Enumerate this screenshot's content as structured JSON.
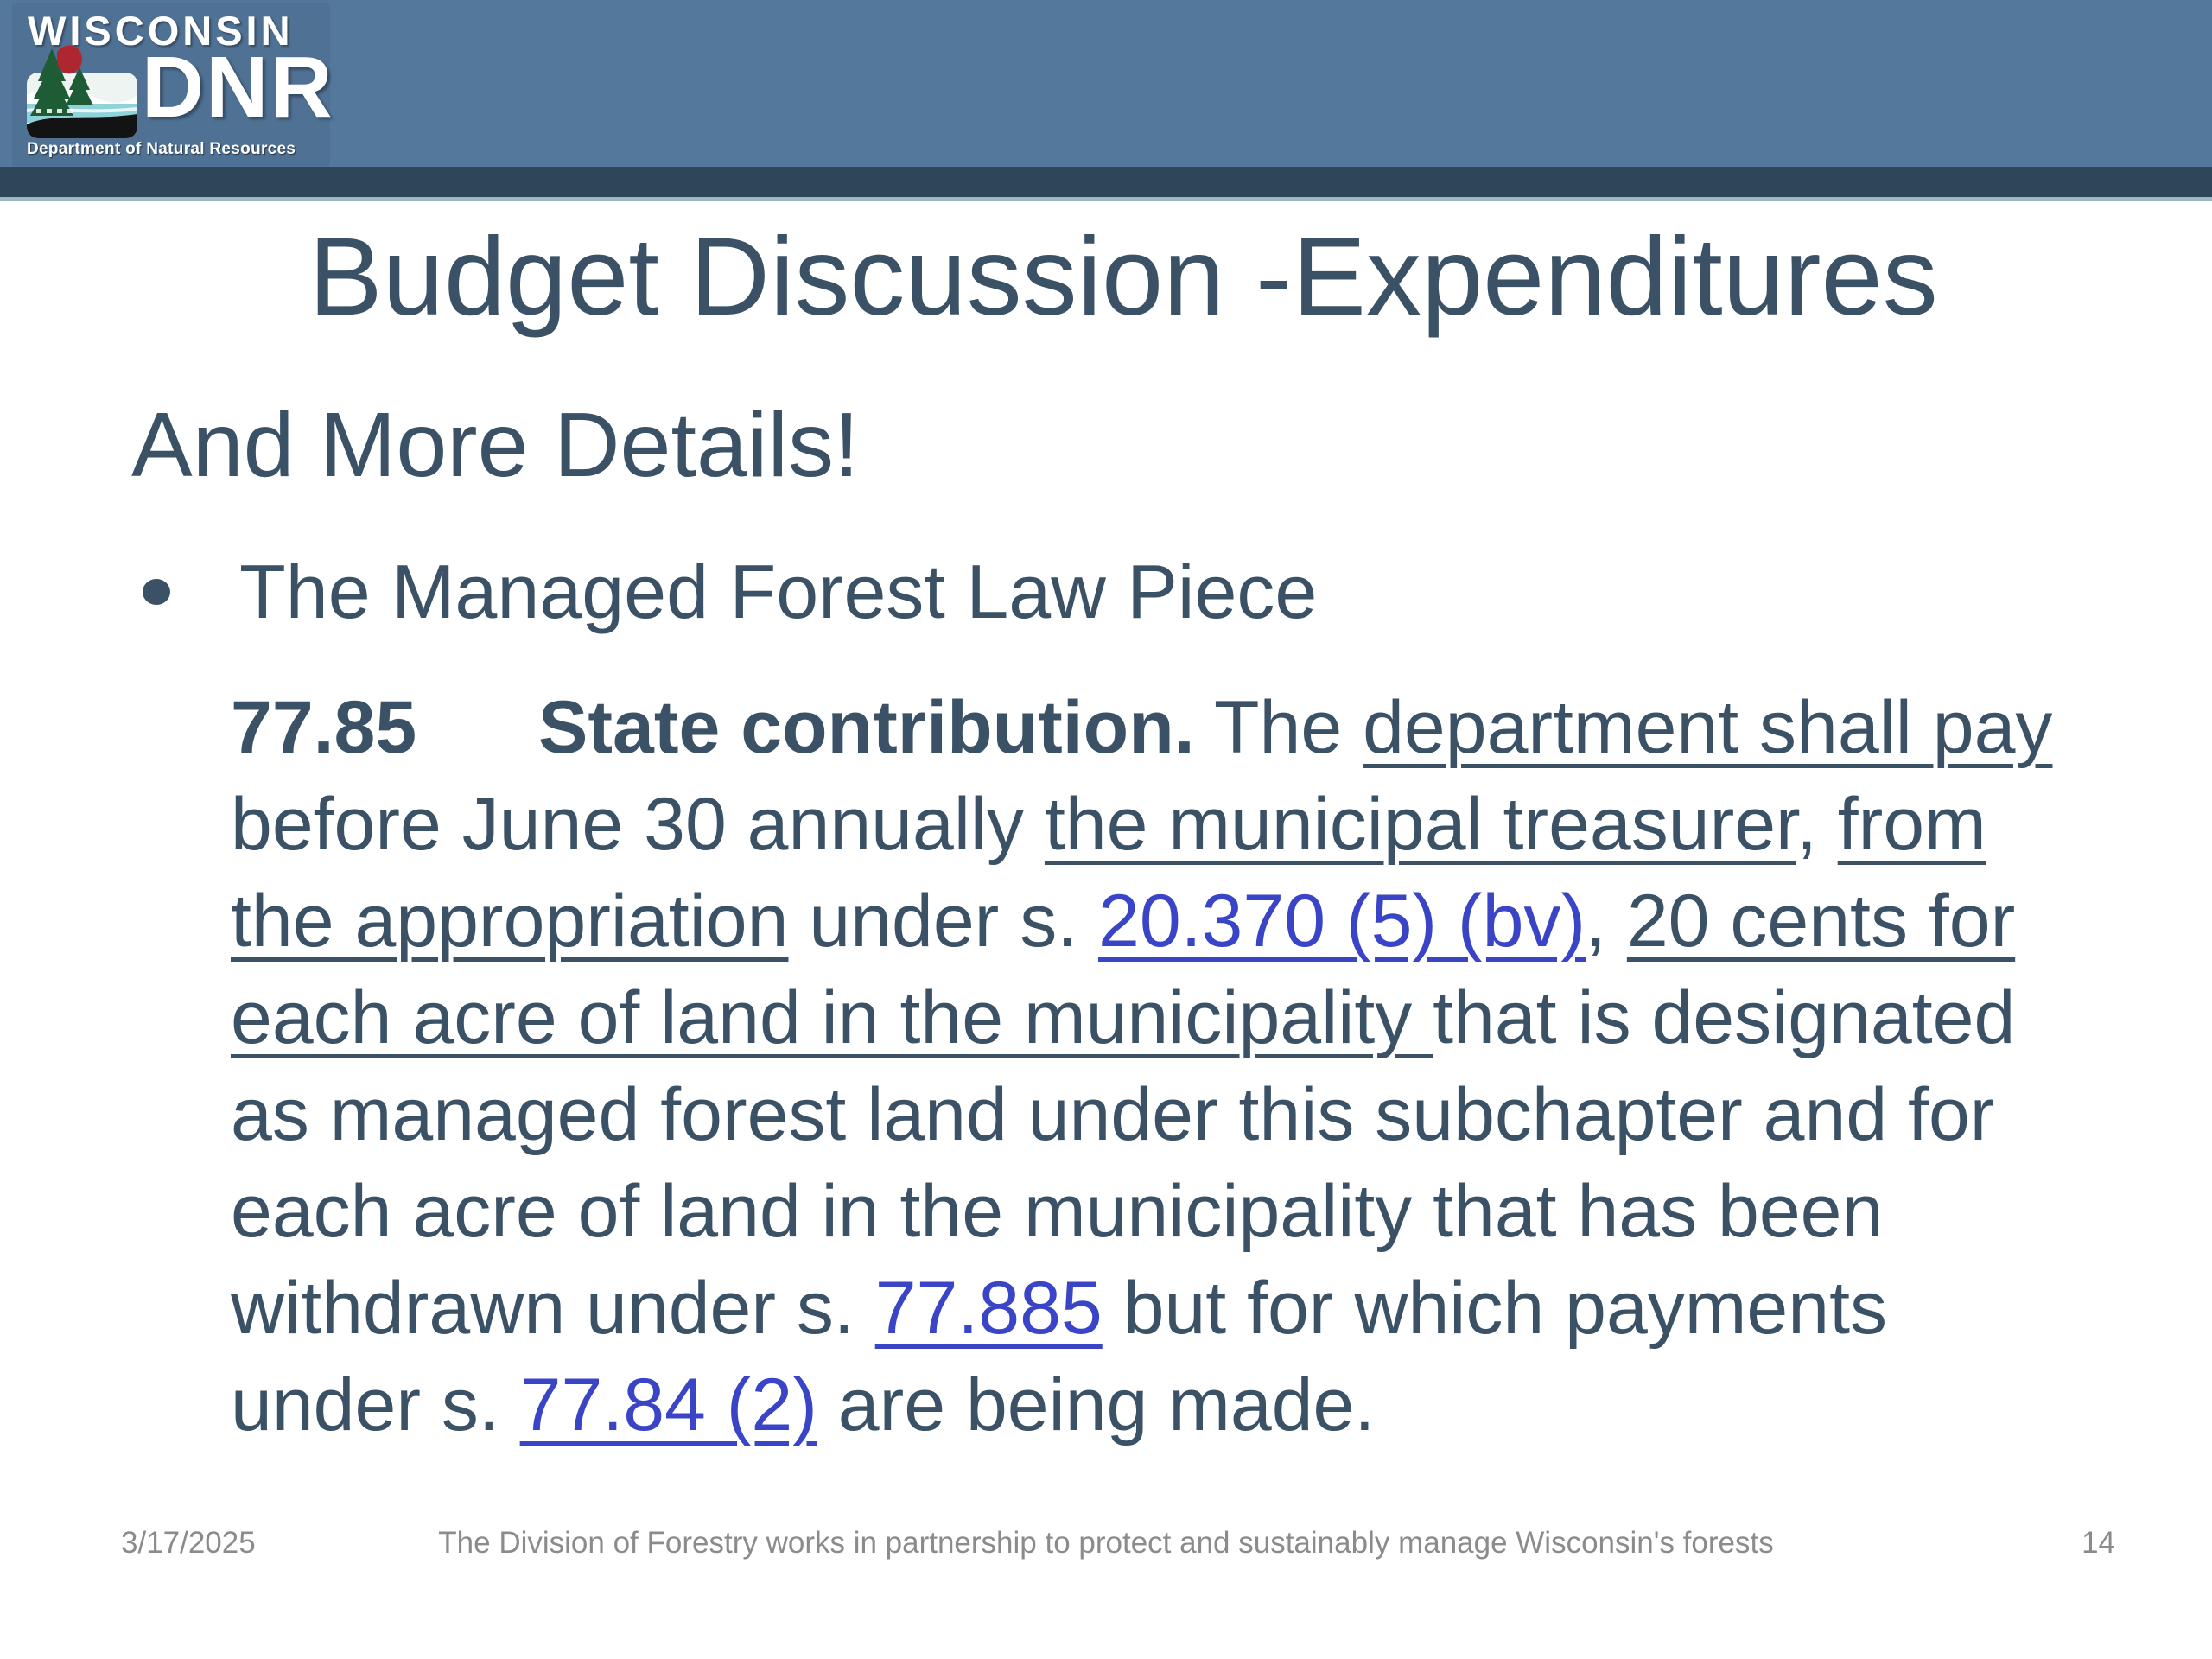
{
  "header": {
    "logo": {
      "title": "WISCONSIN",
      "acronym": "DNR",
      "tagline": "Department of Natural Resources",
      "icon": "dnr-landscape-icon"
    }
  },
  "slide": {
    "title": "Budget Discussion -Expenditures",
    "heading": "And More Details!",
    "bullet_text": "The Managed Forest Law Piece",
    "statute_lines": [
      [
        {
          "text": "77.85",
          "bold": true,
          "tabstop": true
        },
        {
          "text": "State contribution.",
          "bold": true
        },
        {
          "text": " The "
        },
        {
          "text": "department shall pay",
          "underline": true
        }
      ],
      [
        {
          "text": "before June 30 annually "
        },
        {
          "text": "the municipal treasurer",
          "underline": true
        },
        {
          "text": ", "
        },
        {
          "text": "from",
          "underline": true
        }
      ],
      [
        {
          "text": "the appropriation",
          "underline": true
        },
        {
          "text": " under s. "
        },
        {
          "text": "20.370 (5) (bv)",
          "link": true
        },
        {
          "text": ", "
        },
        {
          "text": "20 cents for",
          "underline": true
        }
      ],
      [
        {
          "text": "each acre of land in the municipality ",
          "underline": true
        },
        {
          "text": "that is designated"
        }
      ],
      [
        {
          "text": "as managed forest land under this subchapter and for"
        }
      ],
      [
        {
          "text": "each acre of land in the municipality that has been"
        }
      ],
      [
        {
          "text": "withdrawn under s. "
        },
        {
          "text": "77.885",
          "link": true
        },
        {
          "text": " but for which payments"
        }
      ],
      [
        {
          "text": "under s. "
        },
        {
          "text": "77.84 (2)",
          "link": true
        },
        {
          "text": " are being made."
        }
      ]
    ]
  },
  "footer": {
    "date": "3/17/2025",
    "text": "The Division of Forestry works in partnership to protect and sustainably manage Wisconsin's forests",
    "page_number": "14"
  },
  "colors": {
    "header_band": "#54789c",
    "header_band_dark": "#2e455a",
    "header_rule": "#9db7c6",
    "body_text": "#3a5166",
    "link": "#3a44c6",
    "footer_text": "#8b8b8b"
  }
}
